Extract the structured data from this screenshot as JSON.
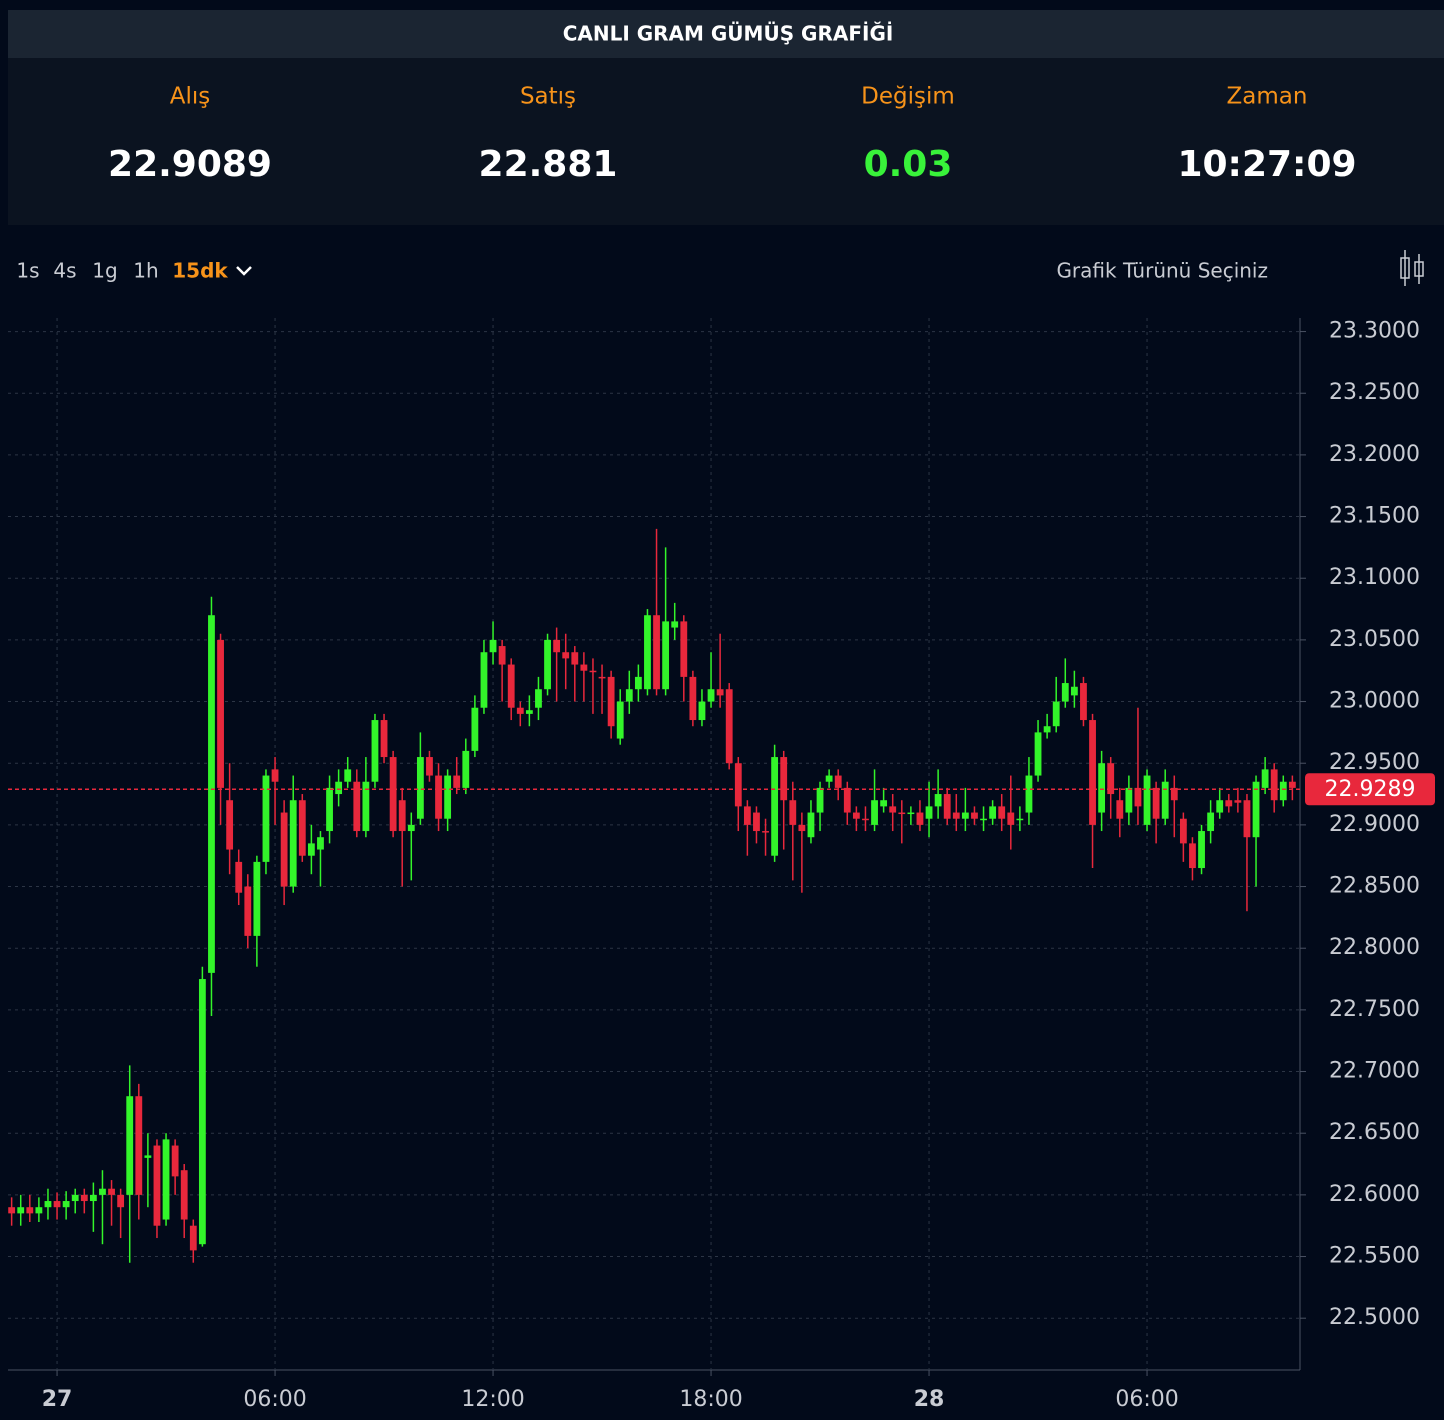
{
  "header": {
    "title": "CANLI GRAM GÜMÜŞ GRAFİĞİ"
  },
  "stats": [
    {
      "label": "Alış",
      "value": 22.9089
    },
    {
      "label": "Satış",
      "value": 22.881
    },
    {
      "label": "Değişim",
      "value": 0.03
    },
    {
      "label": "Zaman",
      "value": "10:27:09"
    }
  ],
  "toolbar": {
    "intervals": [
      "1s",
      "4s",
      "1g",
      "1h",
      "15dk"
    ],
    "active": "15dk",
    "chart_type_label": "Grafik Türünü Seçiniz"
  },
  "chart_data": {
    "type": "candlestick",
    "grid": true,
    "up_color": "#33f52a",
    "down_color": "#e8283c",
    "current_price": 22.9289,
    "xlim": [
      -1.35,
      34.21
    ],
    "ylim": [
      22.458,
      23.311
    ],
    "xticks": [
      {
        "value": 0,
        "label": "27"
      },
      {
        "value": 6,
        "label": "06:00"
      },
      {
        "value": 12,
        "label": "12:00"
      },
      {
        "value": 18,
        "label": "18:00"
      },
      {
        "value": 24,
        "label": "28"
      },
      {
        "value": 30,
        "label": "06:00"
      }
    ],
    "yticks": [
      {
        "value": 22.5,
        "label": "22.5000"
      },
      {
        "value": 22.55,
        "label": "22.5500"
      },
      {
        "value": 22.6,
        "label": "22.6000"
      },
      {
        "value": 22.65,
        "label": "22.6500"
      },
      {
        "value": 22.7,
        "label": "22.7000"
      },
      {
        "value": 22.75,
        "label": "22.7500"
      },
      {
        "value": 22.8,
        "label": "22.8000"
      },
      {
        "value": 22.85,
        "label": "22.8500"
      },
      {
        "value": 22.9,
        "label": "22.9000"
      },
      {
        "value": 22.95,
        "label": "22.9500"
      },
      {
        "value": 23,
        "label": "23.0000"
      },
      {
        "value": 23.05,
        "label": "23.0500"
      },
      {
        "value": 23.1,
        "label": "23.1000"
      },
      {
        "value": 23.15,
        "label": "23.1500"
      },
      {
        "value": 23.2,
        "label": "23.2000"
      },
      {
        "value": 23.25,
        "label": "23.2500"
      },
      {
        "value": 23.3,
        "label": "23.3000"
      }
    ],
    "x": [
      -1.25,
      -1,
      -0.75,
      -0.5,
      -0.25,
      0,
      0.25,
      0.5,
      0.75,
      1,
      1.25,
      1.5,
      1.75,
      2,
      2.25,
      2.5,
      2.75,
      3,
      3.25,
      3.5,
      3.75,
      4,
      4.25,
      4.5,
      4.75,
      5,
      5.25,
      5.5,
      5.75,
      6,
      6.25,
      6.5,
      6.75,
      7,
      7.25,
      7.5,
      7.75,
      8,
      8.25,
      8.5,
      8.75,
      9,
      9.25,
      9.5,
      9.75,
      10,
      10.25,
      10.5,
      10.75,
      11,
      11.25,
      11.5,
      11.75,
      12,
      12.25,
      12.5,
      12.75,
      13,
      13.25,
      13.5,
      13.75,
      14,
      14.25,
      14.5,
      14.75,
      15,
      15.25,
      15.5,
      15.75,
      16,
      16.25,
      16.5,
      16.75,
      17,
      17.25,
      17.5,
      17.75,
      18,
      18.25,
      18.5,
      18.75,
      19,
      19.25,
      19.5,
      19.75,
      20,
      20.25,
      20.5,
      20.75,
      21,
      21.25,
      21.5,
      21.75,
      22,
      22.25,
      22.5,
      22.75,
      23,
      23.25,
      23.5,
      23.75,
      24,
      24.25,
      24.5,
      24.75,
      25,
      25.25,
      25.5,
      25.75,
      26,
      26.25,
      26.5,
      26.75,
      27,
      27.25,
      27.5,
      27.75,
      28,
      28.25,
      28.5,
      28.75,
      29,
      29.25,
      29.5,
      29.75,
      30,
      30.25,
      30.5,
      30.75,
      31,
      31.25,
      31.5,
      31.75,
      32,
      32.25,
      32.5,
      32.75,
      33,
      33.25,
      33.5,
      33.75,
      34
    ],
    "open": [
      22.59,
      22.585,
      22.59,
      22.585,
      22.59,
      22.595,
      22.59,
      22.595,
      22.6,
      22.595,
      22.6,
      22.605,
      22.6,
      22.6,
      22.68,
      22.63,
      22.64,
      22.58,
      22.64,
      22.62,
      22.575,
      22.56,
      22.78,
      23.05,
      22.92,
      22.87,
      22.85,
      22.81,
      22.87,
      22.945,
      22.91,
      22.85,
      22.92,
      22.875,
      22.88,
      22.895,
      22.925,
      22.935,
      22.935,
      22.895,
      22.935,
      22.985,
      22.955,
      22.92,
      22.895,
      22.905,
      22.955,
      22.94,
      22.905,
      22.94,
      22.93,
      22.96,
      22.995,
      23.04,
      23.045,
      23.03,
      22.995,
      22.99,
      22.995,
      23.01,
      23.05,
      23.04,
      23.04,
      23.03,
      23.025,
      23.02,
      23.02,
      22.97,
      23,
      23.01,
      23.01,
      23.07,
      23.01,
      23.06,
      23.065,
      23.02,
      22.985,
      23,
      23.01,
      23.01,
      22.95,
      22.915,
      22.91,
      22.895,
      22.875,
      22.955,
      22.92,
      22.9,
      22.89,
      22.91,
      22.935,
      22.94,
      22.93,
      22.91,
      22.905,
      22.9,
      22.915,
      22.915,
      22.91,
      22.91,
      22.91,
      22.905,
      22.915,
      22.925,
      22.91,
      22.905,
      22.91,
      22.905,
      22.905,
      22.915,
      22.91,
      22.905,
      22.91,
      22.94,
      22.975,
      22.98,
      23,
      23.005,
      23.015,
      22.985,
      22.91,
      22.95,
      22.92,
      22.91,
      22.93,
      22.9,
      22.93,
      22.905,
      22.93,
      22.905,
      22.885,
      22.865,
      22.895,
      22.91,
      22.92,
      22.92,
      22.92,
      22.89,
      22.93,
      22.945,
      22.92,
      22.935
    ],
    "high": [
      22.598,
      22.6,
      22.6,
      22.598,
      22.605,
      22.602,
      22.603,
      22.605,
      22.605,
      22.61,
      22.62,
      22.612,
      22.605,
      22.705,
      22.69,
      22.65,
      22.645,
      22.65,
      22.645,
      22.625,
      22.58,
      22.785,
      23.085,
      23.055,
      22.95,
      22.88,
      22.86,
      22.875,
      22.945,
      22.955,
      22.92,
      22.94,
      22.925,
      22.9,
      22.895,
      22.94,
      22.945,
      22.955,
      22.945,
      22.955,
      22.99,
      22.99,
      22.96,
      22.93,
      22.91,
      22.975,
      22.96,
      22.95,
      22.945,
      22.955,
      22.97,
      23.005,
      23.05,
      23.065,
      23.05,
      23.035,
      23,
      23.005,
      23.02,
      23.055,
      23.06,
      23.055,
      23.045,
      23.04,
      23.035,
      23.03,
      23.025,
      23.01,
      23.025,
      23.03,
      23.075,
      23.14,
      23.125,
      23.08,
      23.07,
      23.025,
      23.01,
      23.04,
      23.055,
      23.015,
      22.955,
      22.92,
      22.915,
      22.905,
      22.965,
      22.96,
      22.935,
      22.91,
      22.92,
      22.935,
      22.945,
      22.945,
      22.935,
      22.915,
      22.915,
      22.945,
      22.93,
      22.925,
      22.92,
      22.915,
      22.92,
      22.935,
      22.945,
      22.93,
      22.925,
      22.93,
      22.915,
      22.915,
      22.92,
      22.925,
      22.94,
      22.915,
      22.955,
      22.985,
      22.99,
      23.02,
      23.035,
      23.025,
      23.02,
      22.99,
      22.96,
      22.955,
      22.93,
      22.94,
      22.995,
      22.945,
      22.935,
      22.945,
      22.94,
      22.91,
      22.89,
      22.9,
      22.92,
      22.93,
      22.925,
      22.93,
      22.925,
      22.94,
      22.955,
      22.95,
      22.94,
      22.94
    ],
    "low": [
      22.575,
      22.575,
      22.578,
      22.578,
      22.58,
      22.58,
      22.58,
      22.585,
      22.585,
      22.57,
      22.56,
      22.575,
      22.565,
      22.545,
      22.58,
      22.59,
      22.565,
      22.575,
      22.6,
      22.565,
      22.545,
      22.558,
      22.745,
      22.9,
      22.86,
      22.835,
      22.8,
      22.785,
      22.86,
      22.9,
      22.835,
      22.845,
      22.87,
      22.86,
      22.85,
      22.885,
      22.915,
      22.93,
      22.89,
      22.89,
      22.93,
      22.95,
      22.89,
      22.85,
      22.855,
      22.9,
      22.935,
      22.895,
      22.895,
      22.925,
      22.925,
      22.955,
      22.99,
      23.03,
      23,
      22.985,
      22.98,
      22.98,
      22.985,
      23.005,
      23,
      23.01,
      23,
      23,
      22.99,
      22.99,
      22.97,
      22.965,
      22.99,
      23,
      23.005,
      23.005,
      23.005,
      23.05,
      23,
      22.98,
      22.98,
      22.995,
      22.995,
      22.945,
      22.895,
      22.875,
      22.885,
      22.875,
      22.87,
      22.88,
      22.855,
      22.845,
      22.885,
      22.895,
      22.93,
      22.92,
      22.9,
      22.895,
      22.895,
      22.895,
      22.91,
      22.895,
      22.885,
      22.9,
      22.895,
      22.89,
      22.905,
      22.9,
      22.895,
      22.895,
      22.9,
      22.895,
      22.9,
      22.895,
      22.88,
      22.895,
      22.9,
      22.935,
      22.97,
      22.975,
      22.995,
      22.995,
      22.98,
      22.865,
      22.895,
      22.905,
      22.89,
      22.9,
      22.9,
      22.895,
      22.885,
      22.9,
      22.89,
      22.87,
      22.855,
      22.86,
      22.885,
      22.905,
      22.91,
      22.91,
      22.83,
      22.85,
      22.925,
      22.91,
      22.915,
      22.92
    ],
    "close": [
      22.585,
      22.59,
      22.585,
      22.59,
      22.595,
      22.59,
      22.595,
      22.6,
      22.595,
      22.6,
      22.605,
      22.6,
      22.59,
      22.68,
      22.6,
      22.632,
      22.575,
      22.645,
      22.615,
      22.58,
      22.555,
      22.775,
      23.07,
      22.93,
      22.88,
      22.845,
      22.81,
      22.87,
      22.94,
      22.935,
      22.85,
      22.92,
      22.875,
      22.885,
      22.89,
      22.93,
      22.935,
      22.945,
      22.895,
      22.935,
      22.985,
      22.955,
      22.895,
      22.895,
      22.9,
      22.955,
      22.94,
      22.905,
      22.94,
      22.93,
      22.96,
      22.995,
      23.04,
      23.05,
      23.03,
      22.995,
      22.99,
      22.993,
      23.01,
      23.05,
      23.04,
      23.035,
      23.03,
      23.025,
      23.024,
      23.019,
      22.98,
      23,
      23.01,
      23.02,
      23.07,
      23.01,
      23.065,
      23.065,
      23.02,
      22.985,
      23,
      23.01,
      23.005,
      22.95,
      22.915,
      22.9,
      22.895,
      22.894,
      22.955,
      22.92,
      22.9,
      22.895,
      22.91,
      22.93,
      22.94,
      22.93,
      22.91,
      22.905,
      22.904,
      22.92,
      22.92,
      22.91,
      22.909,
      22.91,
      22.9,
      22.915,
      22.925,
      22.905,
      22.905,
      22.91,
      22.905,
      22.905,
      22.915,
      22.905,
      22.9,
      22.905,
      22.94,
      22.975,
      22.98,
      23,
      23.015,
      23.012,
      22.985,
      22.9,
      22.95,
      22.925,
      22.905,
      22.93,
      22.915,
      22.94,
      22.905,
      22.935,
      22.92,
      22.885,
      22.865,
      22.895,
      22.91,
      22.92,
      22.915,
      22.918,
      22.89,
      22.935,
      22.945,
      22.92,
      22.935,
      22.93
    ]
  }
}
